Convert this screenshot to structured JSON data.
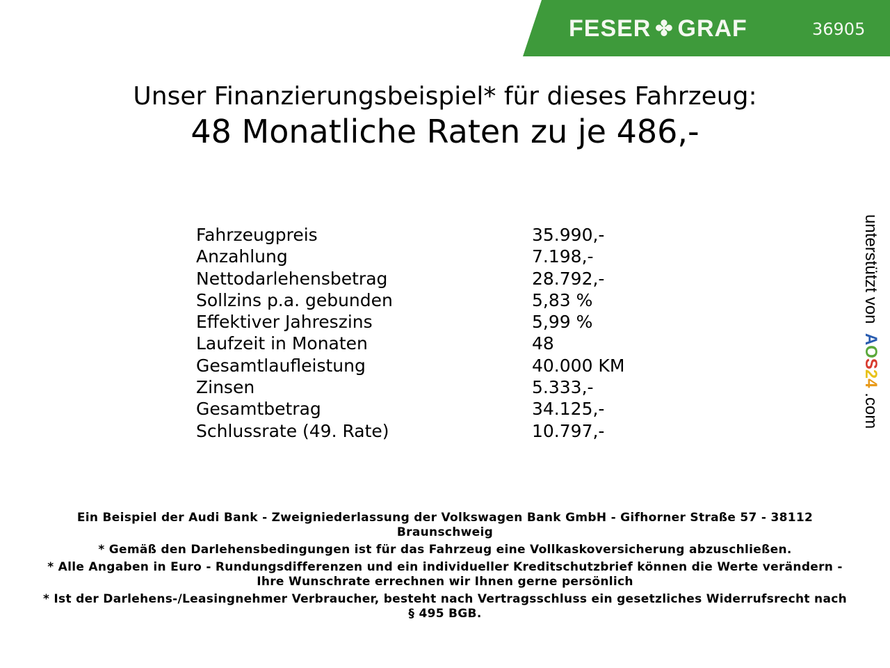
{
  "header": {
    "brand": "FESER GRAF",
    "brand_left": "FESER",
    "brand_right": "GRAF",
    "dealer_id": "36905",
    "brand_color": "#3e9a3b",
    "icon": "clover-icon"
  },
  "title": {
    "line1": "Unser Finanzierungsbeispiel* für dieses Fahrzeug:",
    "line2": "48 Monatliche Raten zu je 486,-"
  },
  "rows": [
    {
      "label": "Fahrzeugpreis",
      "value": "35.990,-"
    },
    {
      "label": "Anzahlung",
      "value": "7.198,-"
    },
    {
      "label": "Nettodarlehensbetrag",
      "value": "28.792,-"
    },
    {
      "label": "Sollzins p.a. gebunden",
      "value": "5,83 %"
    },
    {
      "label": "Effektiver Jahreszins",
      "value": "5,99 %"
    },
    {
      "label": "Laufzeit in Monaten",
      "value": "48"
    },
    {
      "label": "Gesamtlaufleistung",
      "value": "40.000 KM"
    },
    {
      "label": "Zinsen",
      "value": "5.333,-"
    },
    {
      "label": "Gesamtbetrag",
      "value": "34.125,-"
    },
    {
      "label": "Schlussrate (49. Rate)",
      "value": "10.797,-"
    }
  ],
  "footer": [
    "Ein Beispiel der Audi Bank - Zweigniederlassung der Volkswagen Bank GmbH - Gifhorner Straße 57 - 38112 Braunschweig",
    "* Gemäß den Darlehensbedingungen ist für das Fahrzeug eine Vollkaskoversicherung abzuschließen.",
    "* Alle Angaben in Euro - Rundungsdifferenzen und ein individueller Kreditschutzbrief können die Werte verändern - Ihre Wunschrate errechnen wir Ihnen gerne persönlich",
    "* Ist der Darlehens-/Leasingnehmer Verbraucher, besteht nach Vertragsschluss ein gesetzliches Widerrufsrecht nach § 495 BGB."
  ],
  "side": {
    "prefix": "unterstützt von",
    "logo": "AOS24",
    "suffix": ".com",
    "logo_colors": [
      "#2a5db0",
      "#5aa83a",
      "#d83a2e",
      "#e8c21a",
      "#e89a1a"
    ]
  }
}
